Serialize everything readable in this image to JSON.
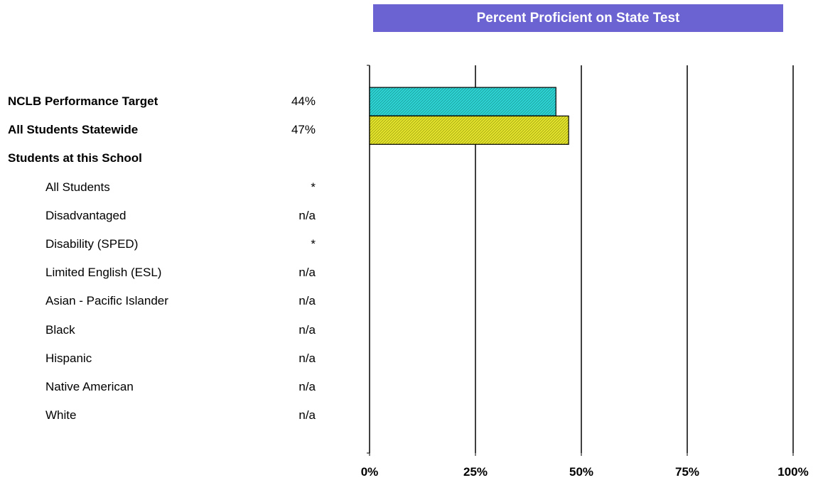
{
  "chart_data": {
    "type": "bar",
    "orientation": "horizontal",
    "title": "Percent Proficient on State Test",
    "xlim": [
      0,
      100
    ],
    "x_ticks": [
      0,
      25,
      50,
      75,
      100
    ],
    "x_tick_labels": [
      "0%",
      "25%",
      "50%",
      "75%",
      "100%"
    ],
    "grid": "vertical lines at ticks",
    "rows": [
      {
        "label": "NCLB Performance Target",
        "display": "44%",
        "value": 44,
        "style": "header"
      },
      {
        "label": "All Students Statewide",
        "display": "47%",
        "value": 47,
        "style": "header"
      },
      {
        "label": "Students at this School",
        "display": "",
        "value": null,
        "style": "header"
      },
      {
        "label": "All Students",
        "display": "*",
        "value": null,
        "style": "sub"
      },
      {
        "label": "Disadvantaged",
        "display": "n/a",
        "value": null,
        "style": "sub"
      },
      {
        "label": "Disability (SPED)",
        "display": "*",
        "value": null,
        "style": "sub"
      },
      {
        "label": "Limited English (ESL)",
        "display": "n/a",
        "value": null,
        "style": "sub"
      },
      {
        "label": "Asian - Pacific Islander",
        "display": "n/a",
        "value": null,
        "style": "sub"
      },
      {
        "label": "Black",
        "display": "n/a",
        "value": null,
        "style": "sub"
      },
      {
        "label": "Hispanic",
        "display": "n/a",
        "value": null,
        "style": "sub"
      },
      {
        "label": "Native American",
        "display": "n/a",
        "value": null,
        "style": "sub"
      },
      {
        "label": "White",
        "display": "n/a",
        "value": null,
        "style": "sub"
      }
    ],
    "bar_colors": {
      "NCLB Performance Target": "#2fd6d6",
      "All Students Statewide": "#e6e62e"
    }
  }
}
